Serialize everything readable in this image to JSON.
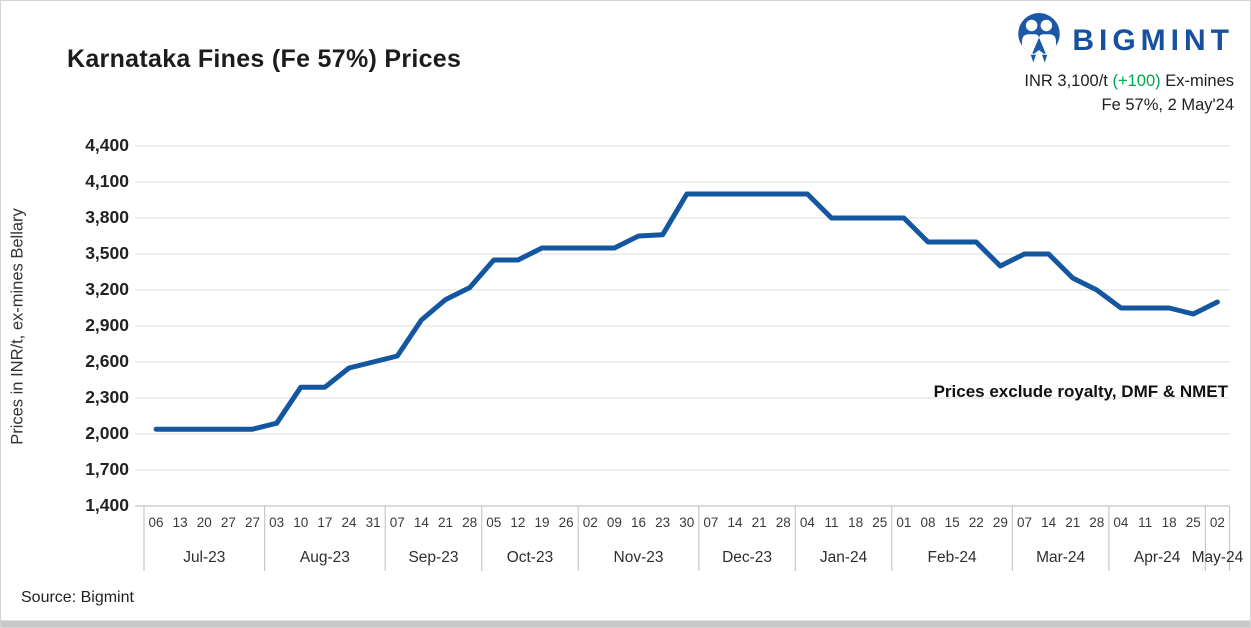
{
  "title": "Karnataka Fines (Fe 57%) Prices",
  "brand": {
    "name": "BIGMINT",
    "icon": "bigmint-two-figures-icon"
  },
  "header_quote": {
    "price": "INR 3,100/t",
    "change": "(+100)",
    "suffix": " Ex-mines",
    "detail": "Fe 57%, 2 May'24"
  },
  "annotation": "Prices exclude royalty, DMF & NMET",
  "source": "Source: Bigmint",
  "colors": {
    "line": "#1456a0",
    "brand_blue": "#17509f",
    "logo_circle": "#1c57a8",
    "change_green": "#00a551",
    "grid": "#e4e4e4",
    "axis_border": "#c9c9c9",
    "tick_text": "#222222",
    "day_text": "#3a3a3a",
    "month_text": "#2e2e2e"
  },
  "chart_data": {
    "type": "line",
    "title": "Karnataka Fines (Fe 57%) Prices",
    "xlabel": "",
    "ylabel": "Prices in INR/t, ex-mines Bellary",
    "ylim": [
      1400,
      4400
    ],
    "ytick_step": 300,
    "grid": "horizontal-only",
    "legend_position": "none",
    "series_name": "Karnataka Fines Fe 57% ex-mines Bellary price",
    "yticks": [
      {
        "value": 4400,
        "label": "4,400"
      },
      {
        "value": 4100,
        "label": "4,100"
      },
      {
        "value": 3800,
        "label": "3,800"
      },
      {
        "value": 3500,
        "label": "3,500"
      },
      {
        "value": 3200,
        "label": "3,200"
      },
      {
        "value": 2900,
        "label": "2,900"
      },
      {
        "value": 2600,
        "label": "2,600"
      },
      {
        "value": 2300,
        "label": "2,300"
      },
      {
        "value": 2000,
        "label": "2,000"
      },
      {
        "value": 1700,
        "label": "1,700"
      },
      {
        "value": 1400,
        "label": "1,400"
      }
    ],
    "months": [
      {
        "label": "Jul-23",
        "days": [
          "06",
          "13",
          "20",
          "27",
          "27"
        ],
        "values": [
          2040,
          2040,
          2040,
          2040,
          2040
        ]
      },
      {
        "label": "Aug-23",
        "days": [
          "03",
          "10",
          "17",
          "24",
          "31"
        ],
        "values": [
          2090,
          2390,
          2390,
          2550,
          2600
        ]
      },
      {
        "label": "Sep-23",
        "days": [
          "07",
          "14",
          "21",
          "28"
        ],
        "values": [
          2650,
          2950,
          3120,
          3220
        ]
      },
      {
        "label": "Oct-23",
        "days": [
          "05",
          "12",
          "19",
          "26"
        ],
        "values": [
          3450,
          3450,
          3550,
          3550
        ]
      },
      {
        "label": "Nov-23",
        "days": [
          "02",
          "09",
          "16",
          "23",
          "30"
        ],
        "values": [
          3550,
          3550,
          3650,
          3660,
          4000
        ]
      },
      {
        "label": "Dec-23",
        "days": [
          "07",
          "14",
          "21",
          "28"
        ],
        "values": [
          4000,
          4000,
          4000,
          4000
        ]
      },
      {
        "label": "Jan-24",
        "days": [
          "04",
          "11",
          "18",
          "25"
        ],
        "values": [
          4000,
          3800,
          3800,
          3800
        ]
      },
      {
        "label": "Feb-24",
        "days": [
          "01",
          "08",
          "15",
          "22",
          "29"
        ],
        "values": [
          3800,
          3600,
          3600,
          3600,
          3400
        ]
      },
      {
        "label": "Mar-24",
        "days": [
          "07",
          "14",
          "21",
          "28"
        ],
        "values": [
          3500,
          3500,
          3300,
          3200
        ]
      },
      {
        "label": "Apr-24",
        "days": [
          "04",
          "11",
          "18",
          "25"
        ],
        "values": [
          3050,
          3050,
          3050,
          3000
        ]
      },
      {
        "label": "May-24",
        "days": [
          "02"
        ],
        "values": [
          3100
        ]
      }
    ]
  }
}
